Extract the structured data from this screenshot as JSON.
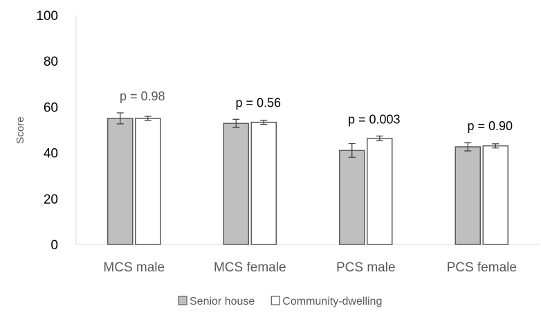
{
  "chart_data": {
    "type": "bar",
    "title": "",
    "xlabel": "",
    "ylabel": "Score",
    "ylim": [
      0,
      100
    ],
    "yticks": [
      0,
      20,
      40,
      60,
      80,
      100
    ],
    "categories": [
      "MCS male",
      "MCS female",
      "PCS male",
      "PCS female"
    ],
    "series": [
      {
        "name": "Senior house",
        "values": [
          55.0,
          52.8,
          41.0,
          42.6
        ],
        "error": [
          2.4,
          1.8,
          3.0,
          1.8
        ],
        "fill": "#bfbfbf",
        "stroke": "#595959"
      },
      {
        "name": "Community-dwelling",
        "values": [
          55.0,
          53.3,
          46.3,
          43.0
        ],
        "error": [
          0.9,
          0.9,
          1.0,
          0.9
        ],
        "fill": "#ffffff",
        "stroke": "#595959"
      }
    ],
    "annotations": [
      {
        "category": "MCS male",
        "text": "p = 0.98",
        "color": "#595959"
      },
      {
        "category": "MCS female",
        "text": "p = 0.56",
        "color": "#000000"
      },
      {
        "category": "PCS male",
        "text": "p = 0.003",
        "color": "#000000"
      },
      {
        "category": "PCS female",
        "text": "p = 0.90",
        "color": "#000000"
      }
    ],
    "legend_position": "bottom",
    "grid": false
  }
}
